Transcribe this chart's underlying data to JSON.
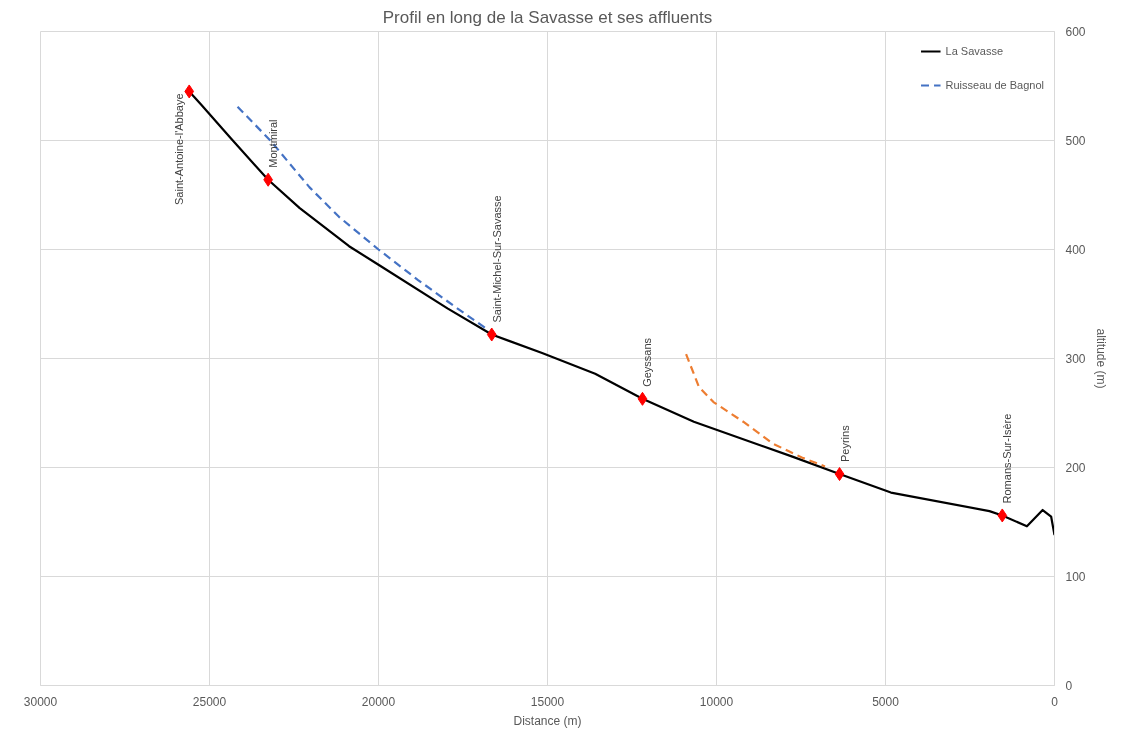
{
  "chart_data": {
    "type": "line",
    "title": "Profil en long de la Savasse et ses affluents",
    "xlabel": "Distance (m)",
    "ylabel": "altitude (m)",
    "xlim": [
      30000,
      0
    ],
    "xticks": [
      30000,
      25000,
      20000,
      15000,
      10000,
      5000,
      0
    ],
    "ylim": [
      0,
      600
    ],
    "yticks": [
      0,
      100,
      200,
      300,
      400,
      500,
      600
    ],
    "grid": true,
    "legend": "top right",
    "series": [
      {
        "name": "La Savasse",
        "color": "#000000",
        "line_style": "solid",
        "x": [
          25600,
          25250,
          24370,
          23265,
          22330,
          20870,
          20000,
          17960,
          16650,
          15160,
          13590,
          12190,
          10670,
          7755,
          6360,
          4840,
          1924,
          1545,
          816,
          350,
          100,
          0
        ],
        "values": [
          545,
          533,
          502,
          464,
          438,
          403,
          386,
          346,
          322,
          305,
          286,
          263,
          242,
          210,
          194,
          177,
          160,
          156,
          146,
          161,
          155,
          138
        ]
      },
      {
        "name": "Ruisseau de Bagnol",
        "type": "line",
        "color": "#4472c4",
        "line_style": "dashed",
        "x": [
          24170,
          23200,
          22040,
          21170,
          20000,
          18830,
          17670,
          16790
        ],
        "values": [
          531,
          500,
          457,
          430,
          400,
          372,
          346,
          327
        ]
      },
      {
        "color": "#ed7d31",
        "line_style": "dashed",
        "x": [
          10900,
          10520,
          10090,
          9210,
          8340,
          7460,
          6790
        ],
        "values": [
          304,
          274,
          260,
          242,
          222,
          209,
          201
        ]
      },
      {
        "type": "scatter",
        "color": "#ff0000",
        "marker": "diamond",
        "x": [
          25600,
          23265,
          16650,
          12190,
          6360,
          1545
        ],
        "values": [
          545,
          464,
          322,
          263,
          194,
          156
        ]
      }
    ],
    "annotations": [
      {
        "text": "Saint-Antoine-l'Abbaye",
        "x": 25600,
        "y": 545
      },
      {
        "text": "Montmiral",
        "x": 23265,
        "y": 464
      },
      {
        "text": "Saint-Michel-Sur-Savasse",
        "x": 16650,
        "y": 322
      },
      {
        "text": "Geyssans",
        "x": 12190,
        "y": 263
      },
      {
        "text": "Peyrins",
        "x": 6360,
        "y": 194
      },
      {
        "text": "Romans-Sur-Isère",
        "x": 1545,
        "y": 156
      }
    ]
  }
}
